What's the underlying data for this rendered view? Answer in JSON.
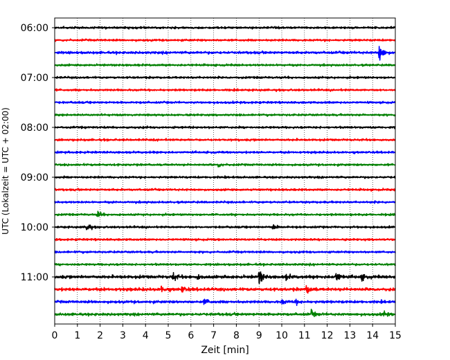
{
  "chart_data": {
    "type": "line",
    "title": "",
    "xlabel": "Zeit  [min]",
    "ylabel": "UTC (Lokalzeit = UTC + 02:00)",
    "xlim": [
      0,
      15
    ],
    "x_ticks": [
      "0",
      "1",
      "2",
      "3",
      "4",
      "5",
      "6",
      "7",
      "8",
      "9",
      "10",
      "11",
      "12",
      "13",
      "14",
      "15"
    ],
    "y_ticks": [
      "06:00",
      "07:00",
      "08:00",
      "09:00",
      "10:00",
      "11:00"
    ],
    "trace_interval_minutes": 15,
    "grid": "vertical dotted lines at each minute",
    "colors": [
      "#000000",
      "#ff0000",
      "#0000ff",
      "#008000"
    ],
    "series": [
      {
        "start": "06:00",
        "color": "#000000",
        "amplitude": 1.0,
        "events": []
      },
      {
        "start": "06:15",
        "color": "#ff0000",
        "amplitude": 1.0,
        "events": []
      },
      {
        "start": "06:30",
        "color": "#0000ff",
        "amplitude": 1.2,
        "events": [
          {
            "t": 14.3,
            "amp": 14
          }
        ]
      },
      {
        "start": "06:45",
        "color": "#008000",
        "amplitude": 1.0,
        "events": []
      },
      {
        "start": "07:00",
        "color": "#000000",
        "amplitude": 1.0,
        "events": []
      },
      {
        "start": "07:15",
        "color": "#ff0000",
        "amplitude": 1.0,
        "events": []
      },
      {
        "start": "07:30",
        "color": "#0000ff",
        "amplitude": 1.0,
        "events": []
      },
      {
        "start": "07:45",
        "color": "#008000",
        "amplitude": 1.0,
        "events": []
      },
      {
        "start": "08:00",
        "color": "#000000",
        "amplitude": 1.0,
        "events": []
      },
      {
        "start": "08:15",
        "color": "#ff0000",
        "amplitude": 1.0,
        "events": []
      },
      {
        "start": "08:30",
        "color": "#0000ff",
        "amplitude": 1.0,
        "events": []
      },
      {
        "start": "08:45",
        "color": "#008000",
        "amplitude": 1.0,
        "events": [
          {
            "t": 7.2,
            "amp": 3
          }
        ]
      },
      {
        "start": "09:00",
        "color": "#000000",
        "amplitude": 1.0,
        "events": []
      },
      {
        "start": "09:15",
        "color": "#ff0000",
        "amplitude": 1.0,
        "events": []
      },
      {
        "start": "09:30",
        "color": "#0000ff",
        "amplitude": 1.0,
        "events": []
      },
      {
        "start": "09:45",
        "color": "#008000",
        "amplitude": 1.0,
        "events": [
          {
            "t": 1.9,
            "amp": 4
          }
        ]
      },
      {
        "start": "10:00",
        "color": "#000000",
        "amplitude": 1.0,
        "events": [
          {
            "t": 1.4,
            "amp": 7
          },
          {
            "t": 9.6,
            "amp": 4
          }
        ]
      },
      {
        "start": "10:15",
        "color": "#ff0000",
        "amplitude": 1.0,
        "events": []
      },
      {
        "start": "10:30",
        "color": "#0000ff",
        "amplitude": 1.0,
        "events": []
      },
      {
        "start": "10:45",
        "color": "#008000",
        "amplitude": 1.0,
        "events": []
      },
      {
        "start": "11:00",
        "color": "#000000",
        "amplitude": 1.5,
        "events": [
          {
            "t": 5.2,
            "amp": 6
          },
          {
            "t": 6.3,
            "amp": 3
          },
          {
            "t": 9.0,
            "amp": 10
          },
          {
            "t": 10.2,
            "amp": 3
          },
          {
            "t": 12.4,
            "amp": 7
          },
          {
            "t": 13.5,
            "amp": 4
          }
        ]
      },
      {
        "start": "11:15",
        "color": "#ff0000",
        "amplitude": 1.5,
        "events": [
          {
            "t": 4.7,
            "amp": 4
          },
          {
            "t": 5.6,
            "amp": 4
          },
          {
            "t": 11.1,
            "amp": 6
          }
        ]
      },
      {
        "start": "11:30",
        "color": "#0000ff",
        "amplitude": 1.3,
        "events": [
          {
            "t": 6.6,
            "amp": 4
          },
          {
            "t": 10.0,
            "amp": 3
          },
          {
            "t": 10.6,
            "amp": 3
          }
        ]
      },
      {
        "start": "11:45",
        "color": "#008000",
        "amplitude": 1.3,
        "events": [
          {
            "t": 11.3,
            "amp": 4
          },
          {
            "t": 14.5,
            "amp": 3
          }
        ]
      }
    ]
  }
}
